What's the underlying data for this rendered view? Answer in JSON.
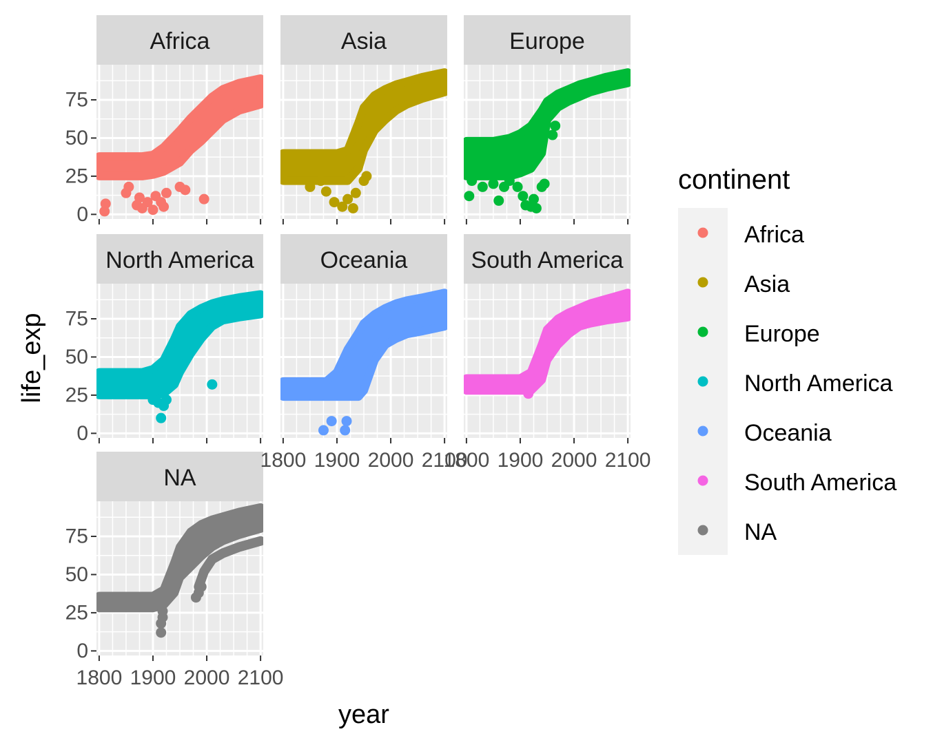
{
  "chart_data": {
    "type": "scatter",
    "facet_by": "continent",
    "xlabel": "year",
    "ylabel": "life_exp",
    "xlim": [
      1795,
      2105
    ],
    "ylim": [
      -3,
      98
    ],
    "x_ticks": [
      1800,
      1900,
      2000,
      2100
    ],
    "x_tick_labels": [
      "1800",
      "1900",
      "2000",
      "2100"
    ],
    "y_ticks": [
      0,
      25,
      50,
      75
    ],
    "y_tick_labels": [
      "0",
      "25",
      "50",
      "75"
    ],
    "grid": true,
    "legend": {
      "title": "continent",
      "placement": "right",
      "entries": [
        {
          "label": "Africa",
          "color": "#F8766D"
        },
        {
          "label": "Asia",
          "color": "#B79F00"
        },
        {
          "label": "Europe",
          "color": "#00BA38"
        },
        {
          "label": "North America",
          "color": "#00BFC4"
        },
        {
          "label": "Oceania",
          "color": "#619CFF"
        },
        {
          "label": "South America",
          "color": "#F564E3"
        },
        {
          "label": "NA",
          "color": "#808080"
        }
      ]
    },
    "series": [
      {
        "name": "Africa",
        "color": "#F8766D",
        "band": {
          "x": [
            1800,
            1850,
            1880,
            1900,
            1920,
            1950,
            1970,
            1990,
            2010,
            2030,
            2060,
            2100
          ],
          "low": [
            25,
            25,
            25,
            26,
            28,
            34,
            42,
            48,
            55,
            62,
            68,
            72
          ],
          "high": [
            38,
            38,
            38,
            39,
            44,
            55,
            63,
            70,
            77,
            82,
            86,
            89
          ]
        },
        "outliers": [
          [
            1810,
            2
          ],
          [
            1812,
            7
          ],
          [
            1850,
            14
          ],
          [
            1855,
            18
          ],
          [
            1870,
            6
          ],
          [
            1875,
            11
          ],
          [
            1880,
            4
          ],
          [
            1890,
            8
          ],
          [
            1900,
            3
          ],
          [
            1905,
            12
          ],
          [
            1915,
            8
          ],
          [
            1920,
            5
          ],
          [
            1925,
            14
          ],
          [
            1950,
            18
          ],
          [
            1960,
            16
          ],
          [
            1995,
            10
          ]
        ]
      },
      {
        "name": "Asia",
        "color": "#B79F00",
        "band": {
          "x": [
            1800,
            1850,
            1880,
            1900,
            1920,
            1940,
            1950,
            1970,
            1990,
            2010,
            2030,
            2060,
            2100
          ],
          "low": [
            22,
            22,
            22,
            22,
            22,
            30,
            42,
            55,
            62,
            68,
            72,
            76,
            80
          ],
          "high": [
            40,
            40,
            40,
            40,
            42,
            60,
            70,
            78,
            82,
            85,
            87,
            90,
            93
          ]
        },
        "outliers": [
          [
            1850,
            18
          ],
          [
            1870,
            22
          ],
          [
            1880,
            15
          ],
          [
            1895,
            8
          ],
          [
            1910,
            5
          ],
          [
            1920,
            10
          ],
          [
            1930,
            4
          ],
          [
            1935,
            14
          ],
          [
            1950,
            22
          ],
          [
            1955,
            25
          ]
        ]
      },
      {
        "name": "Europe",
        "color": "#00BA38",
        "band": {
          "x": [
            1800,
            1850,
            1880,
            1900,
            1920,
            1940,
            1950,
            1970,
            1990,
            2010,
            2030,
            2060,
            2100
          ],
          "low": [
            25,
            25,
            25,
            27,
            30,
            40,
            62,
            70,
            74,
            77,
            80,
            83,
            86
          ],
          "high": [
            48,
            48,
            50,
            53,
            58,
            68,
            74,
            79,
            82,
            85,
            87,
            90,
            93
          ]
        },
        "outliers": [
          [
            1805,
            12
          ],
          [
            1810,
            22
          ],
          [
            1830,
            18
          ],
          [
            1850,
            20
          ],
          [
            1860,
            9
          ],
          [
            1870,
            18
          ],
          [
            1880,
            22
          ],
          [
            1895,
            18
          ],
          [
            1905,
            12
          ],
          [
            1910,
            6
          ],
          [
            1920,
            5
          ],
          [
            1925,
            10
          ],
          [
            1930,
            4
          ],
          [
            1940,
            18
          ],
          [
            1945,
            20
          ],
          [
            1960,
            52
          ],
          [
            1965,
            58
          ]
        ]
      },
      {
        "name": "North America",
        "color": "#00BFC4",
        "band": {
          "x": [
            1800,
            1850,
            1880,
            1900,
            1920,
            1940,
            1950,
            1970,
            1990,
            2010,
            2030,
            2060,
            2100
          ],
          "low": [
            25,
            25,
            25,
            25,
            26,
            32,
            40,
            52,
            62,
            70,
            74,
            76,
            78
          ],
          "high": [
            40,
            40,
            40,
            42,
            48,
            62,
            70,
            78,
            82,
            85,
            87,
            89,
            91
          ]
        },
        "outliers": [
          [
            1900,
            22
          ],
          [
            1905,
            28
          ],
          [
            1910,
            20
          ],
          [
            1915,
            10
          ],
          [
            1920,
            18
          ],
          [
            1925,
            22
          ],
          [
            2010,
            32
          ]
        ]
      },
      {
        "name": "Oceania",
        "color": "#619CFF",
        "band": {
          "x": [
            1800,
            1850,
            1880,
            1900,
            1920,
            1940,
            1950,
            1970,
            1990,
            2010,
            2030,
            2060,
            2100
          ],
          "low": [
            24,
            24,
            24,
            24,
            24,
            24,
            28,
            48,
            58,
            62,
            65,
            67,
            70
          ],
          "high": [
            34,
            34,
            34,
            40,
            55,
            66,
            72,
            78,
            82,
            85,
            87,
            89,
            92
          ]
        },
        "outliers": [
          [
            1875,
            2
          ],
          [
            1890,
            8
          ],
          [
            1915,
            2
          ],
          [
            1918,
            8
          ]
        ]
      },
      {
        "name": "South America",
        "color": "#F564E3",
        "band": {
          "x": [
            1800,
            1850,
            1880,
            1900,
            1920,
            1940,
            1950,
            1970,
            1990,
            2010,
            2030,
            2060,
            2100
          ],
          "low": [
            28,
            28,
            28,
            28,
            28,
            35,
            48,
            58,
            65,
            70,
            72,
            74,
            76
          ],
          "high": [
            36,
            36,
            36,
            36,
            40,
            58,
            68,
            75,
            79,
            82,
            85,
            88,
            92
          ]
        },
        "outliers": [
          [
            1915,
            26
          ]
        ]
      },
      {
        "name": "NA",
        "color": "#808080",
        "band": {
          "x": [
            1800,
            1850,
            1880,
            1900,
            1920,
            1940,
            1950,
            1970,
            1990,
            2010,
            2030,
            2060,
            2100
          ],
          "low": [
            28,
            28,
            28,
            28,
            30,
            38,
            48,
            55,
            62,
            68,
            72,
            76,
            80
          ],
          "high": [
            36,
            36,
            36,
            36,
            40,
            58,
            68,
            78,
            83,
            86,
            88,
            91,
            94
          ]
        },
        "extra_lines": [
          {
            "x": [
              1985,
              1995,
              2010,
              2030,
              2060,
              2100
            ],
            "y": [
              42,
              52,
              60,
              64,
              68,
              72
            ]
          }
        ],
        "outliers": [
          [
            1915,
            12
          ],
          [
            1915,
            18
          ],
          [
            1918,
            22
          ],
          [
            1918,
            26
          ],
          [
            1980,
            35
          ],
          [
            1985,
            38
          ],
          [
            1990,
            42
          ]
        ]
      }
    ]
  }
}
